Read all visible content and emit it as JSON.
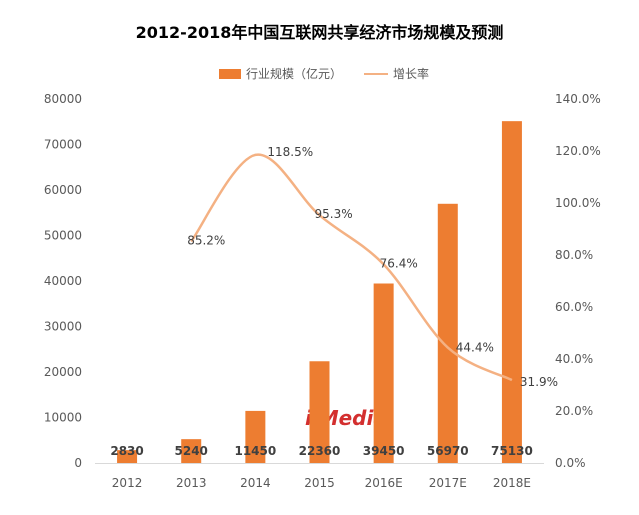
{
  "chart_data": {
    "type": "bar",
    "title": "2012-2018年中国互联网共享经济市场规模及预测",
    "categories": [
      "2012",
      "2013",
      "2014",
      "2015",
      "2016E",
      "2017E",
      "2018E"
    ],
    "series": [
      {
        "name": "行业规模（亿元）",
        "type": "bar",
        "axis": "left",
        "values": [
          2830,
          5240,
          11450,
          22360,
          39450,
          56970,
          75130
        ],
        "labels": [
          "2830",
          "5240",
          "11450",
          "22360",
          "39450",
          "56970",
          "75130"
        ]
      },
      {
        "name": "增长率",
        "type": "line",
        "axis": "right",
        "values": [
          null,
          85.2,
          118.5,
          95.3,
          76.4,
          44.4,
          31.9
        ],
        "labels": [
          "",
          "85.2%",
          "118.5%",
          "95.3%",
          "76.4%",
          "44.4%",
          "31.9%"
        ]
      }
    ],
    "y_left": {
      "min": 0,
      "max": 80000,
      "ticks": [
        "0",
        "10000",
        "20000",
        "30000",
        "40000",
        "50000",
        "60000",
        "70000",
        "80000"
      ]
    },
    "y_right": {
      "min": 0,
      "max": 140,
      "ticks": [
        "0.0%",
        "20.0%",
        "40.0%",
        "60.0%",
        "80.0%",
        "100.0%",
        "120.0%",
        "140.0%"
      ]
    },
    "legend_position": "top-center",
    "grid": false,
    "colors": {
      "bar": "#ed7d31",
      "line": "#f4b183",
      "text": "#595959",
      "title": "#000000",
      "axis": "#d9d9d9"
    }
  }
}
